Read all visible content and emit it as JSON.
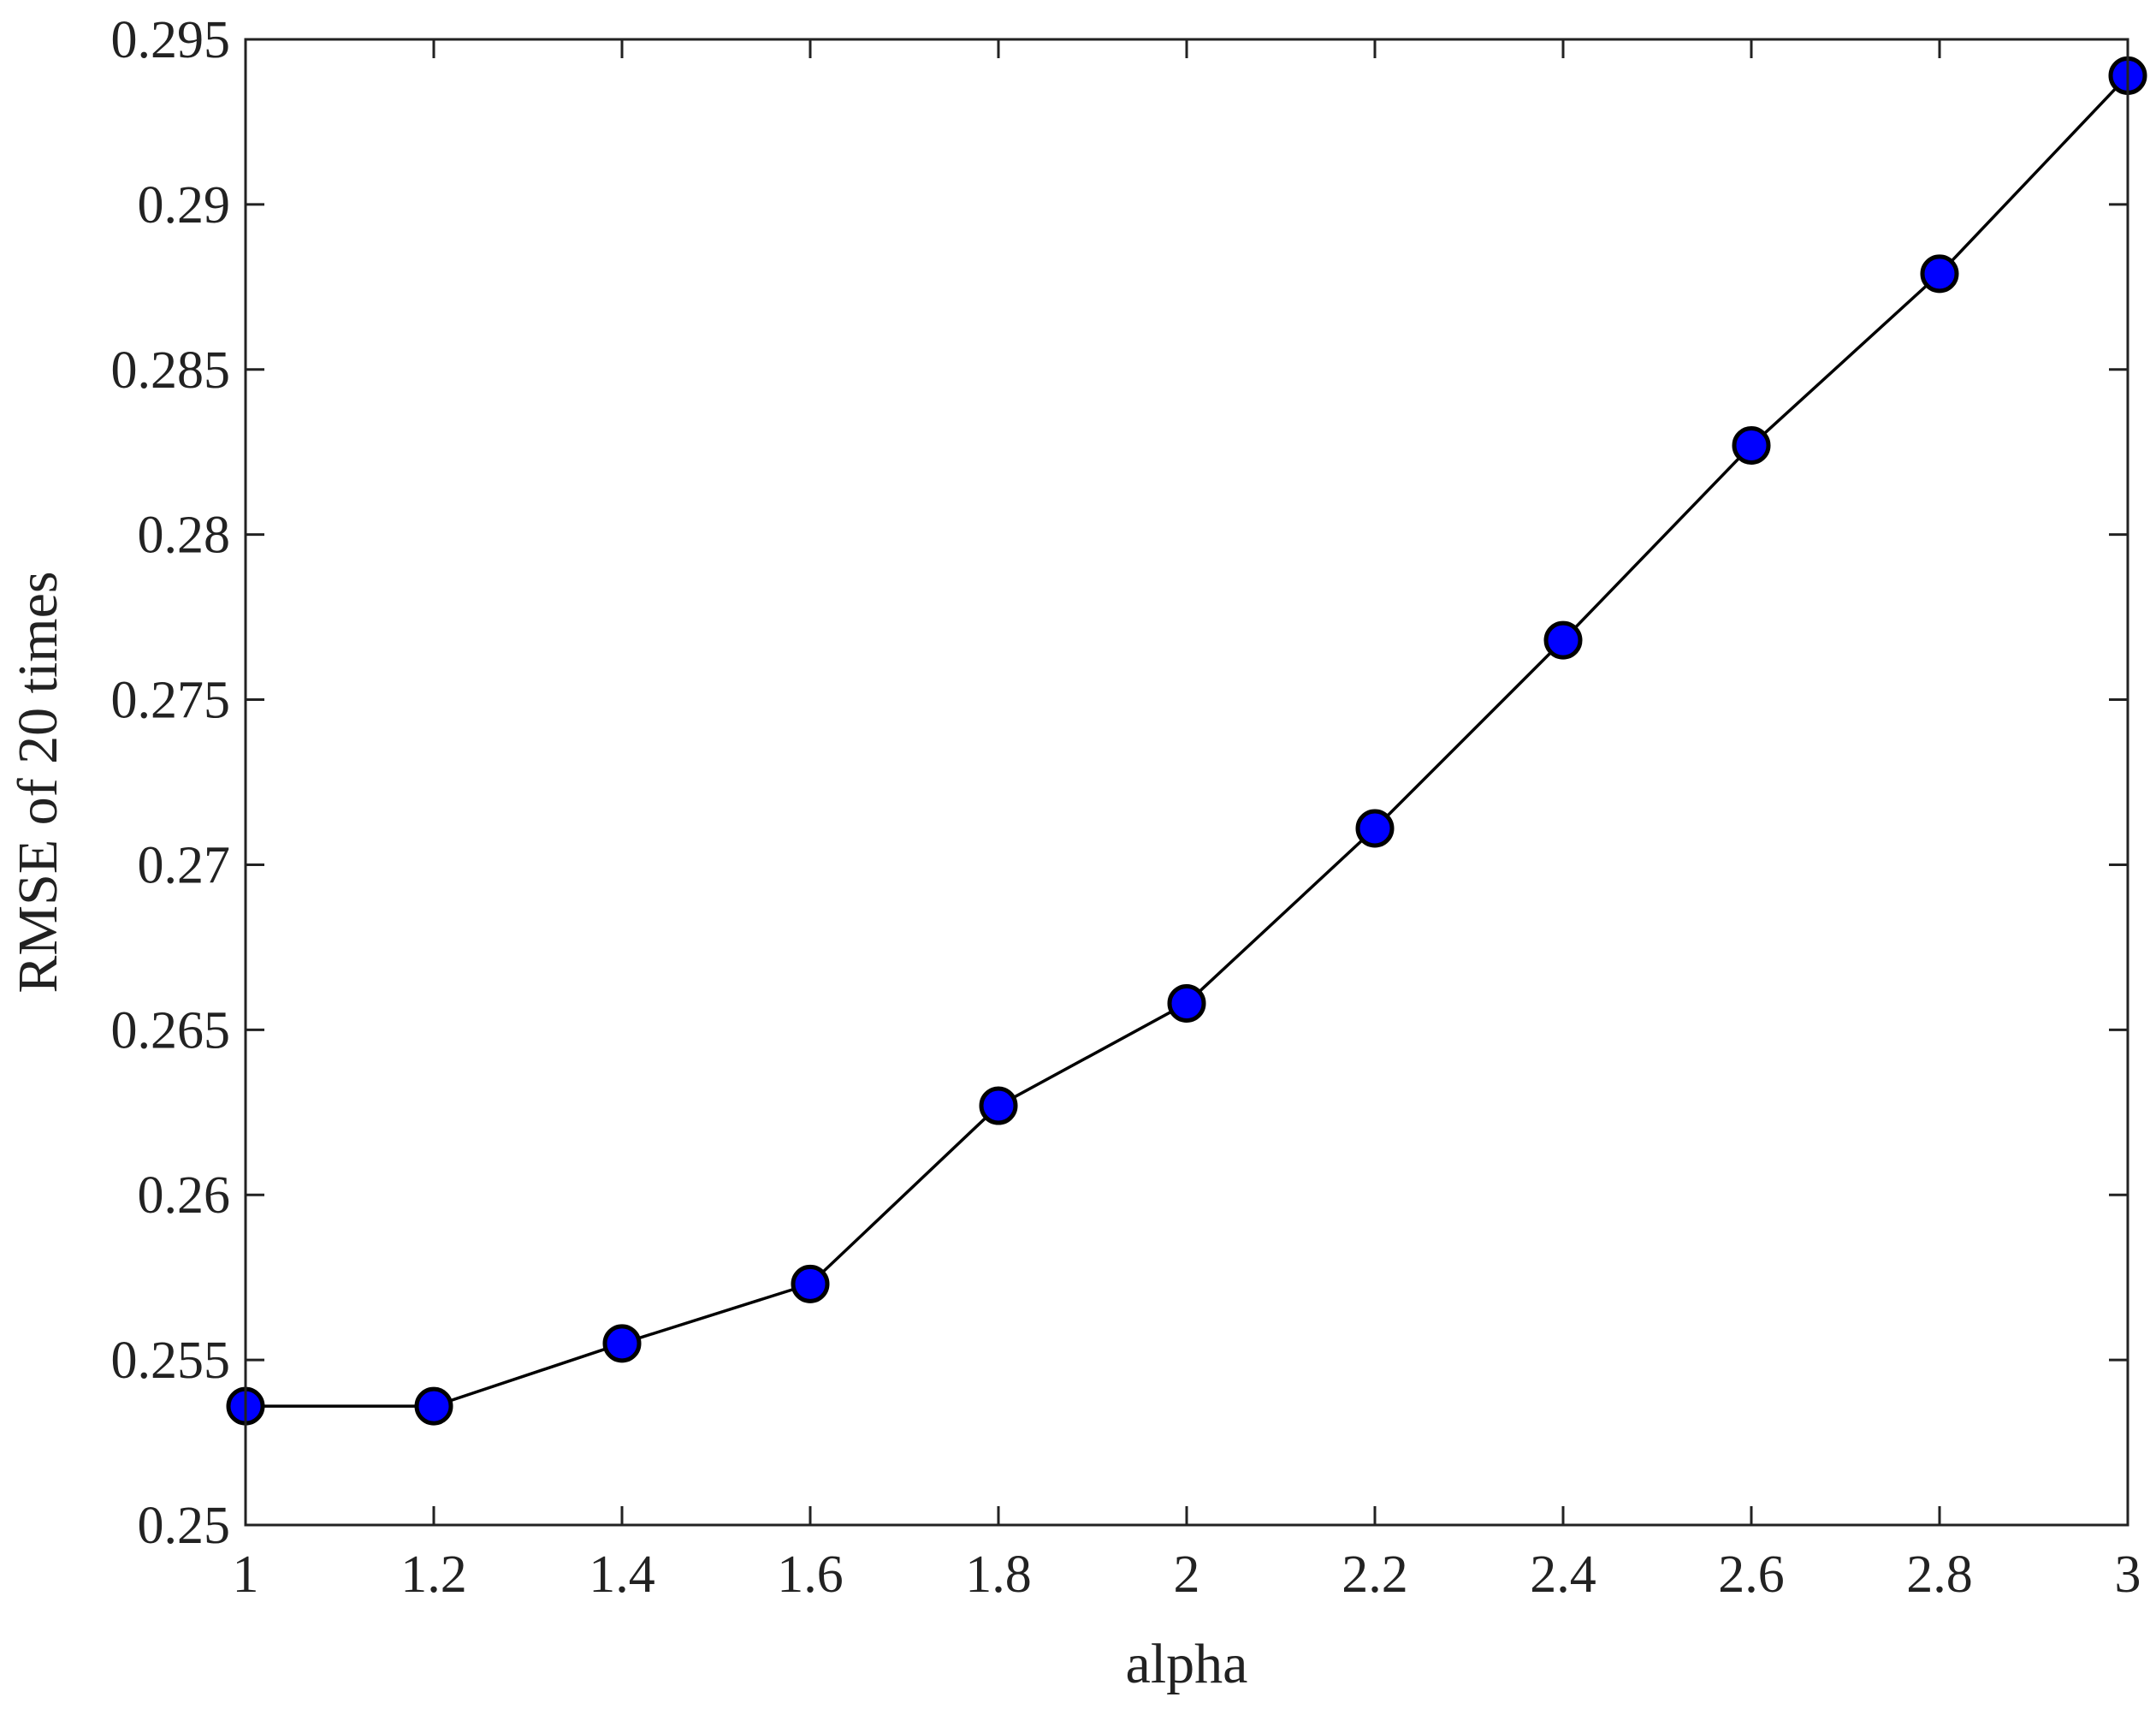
{
  "chart_data": {
    "type": "line",
    "title": "",
    "xlabel": "alpha",
    "ylabel": "RMSE of 20 times",
    "xlim": [
      1,
      3
    ],
    "ylim": [
      0.25,
      0.295
    ],
    "xticks": [
      "1",
      "1.2",
      "1.4",
      "1.6",
      "1.8",
      "2",
      "2.2",
      "2.4",
      "2.6",
      "2.8",
      "3"
    ],
    "yticks": [
      "0.25",
      "0.255",
      "0.26",
      "0.265",
      "0.27",
      "0.275",
      "0.28",
      "0.285",
      "0.29",
      "0.295"
    ],
    "grid": false,
    "legend": "none",
    "series": [
      {
        "x": [
          1,
          1.2,
          1.4,
          1.6,
          1.8,
          2,
          2.2,
          2.4,
          2.6,
          2.8,
          3
        ],
        "values": [
          0.2536,
          0.2536,
          0.2555,
          0.2573,
          0.2627,
          0.2658,
          0.2711,
          0.2768,
          0.2827,
          0.2879,
          0.2939
        ],
        "line_color": "#000000",
        "marker": "circle",
        "marker_fill": "#0000ff",
        "marker_edge": "#000000"
      }
    ]
  }
}
